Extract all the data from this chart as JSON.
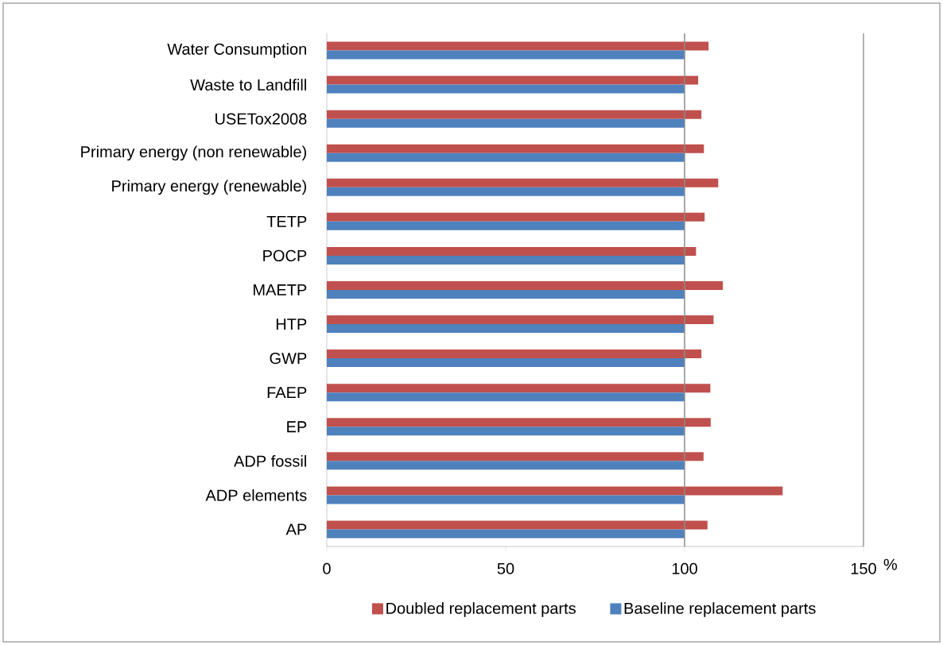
{
  "chart_data": {
    "type": "bar",
    "orientation": "horizontal",
    "xlabel": "%",
    "categories": [
      "Water Consumption",
      "Waste to Landfill",
      "USETox2008",
      "Primary energy (non renewable)",
      "Primary energy (renewable)",
      "TETP",
      "POCP",
      "MAETP",
      "HTP",
      "GWP",
      "FAEP",
      "EP",
      "ADP fossil",
      "ADP elements",
      "AP"
    ],
    "series": [
      {
        "name": "Doubled replacement parts",
        "color": "#c0504d",
        "values": [
          106.7,
          103.8,
          104.7,
          105.4,
          109.4,
          105.6,
          103.2,
          110.7,
          108.1,
          104.7,
          107.2,
          107.3,
          105.3,
          127.4,
          106.4
        ]
      },
      {
        "name": "Baseline replacement parts",
        "color": "#4f81bd",
        "values": [
          100,
          100,
          100,
          100,
          100,
          100,
          100,
          100,
          100,
          100,
          100,
          100,
          100,
          100,
          100
        ]
      }
    ],
    "xlim": [
      0,
      150
    ],
    "xticks": [
      0,
      50,
      100,
      150
    ],
    "ref_lines": [
      {
        "axis": "x",
        "value": 100,
        "color": "#8c8c8c"
      }
    ],
    "legend": "bottom"
  }
}
